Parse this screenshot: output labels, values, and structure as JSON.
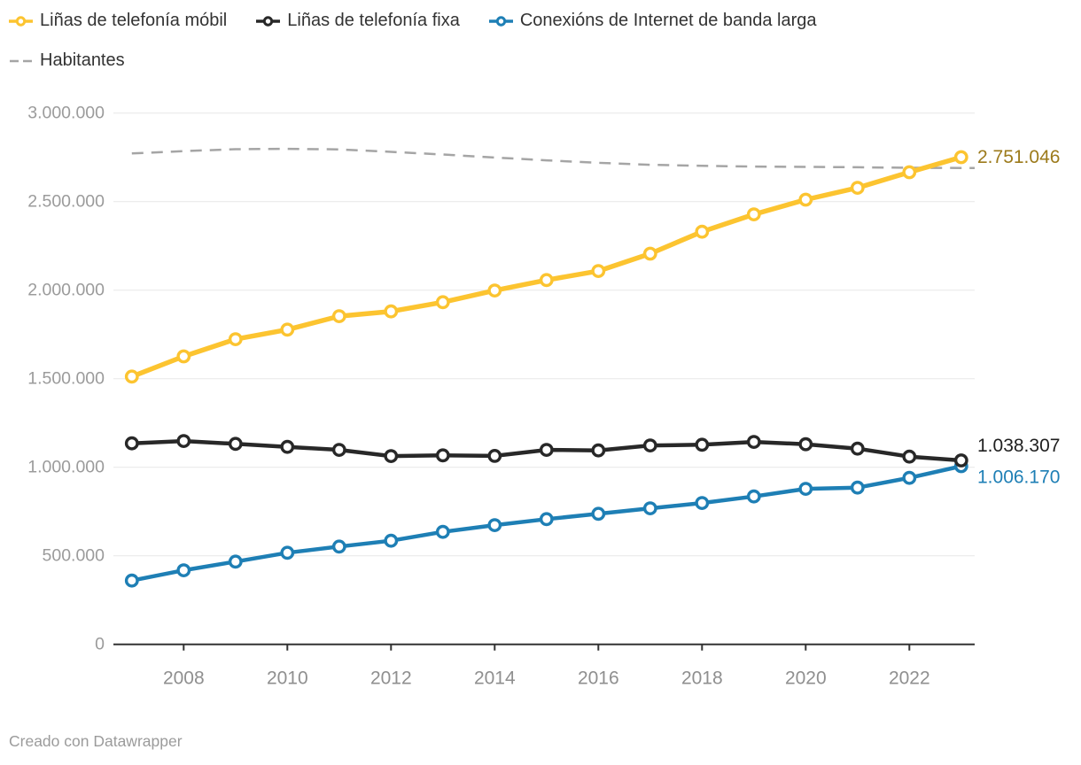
{
  "legend": {
    "items": [
      {
        "label": "Liñas de telefonía móbil",
        "color": "#FCC430",
        "type": "line-marker"
      },
      {
        "label": "Liñas de telefonía fixa",
        "color": "#282828",
        "type": "line-marker"
      },
      {
        "label": "Conexións de Internet de banda larga",
        "color": "#1E7FB5",
        "type": "line-marker"
      },
      {
        "label": "Habitantes",
        "color": "#A5A5A5",
        "type": "dashed"
      }
    ]
  },
  "footer": {
    "credit": "Creado con Datawrapper"
  },
  "chart_data": {
    "type": "line",
    "title": "",
    "xlabel": "",
    "ylabel": "",
    "grid": true,
    "legend_position": "top",
    "x": [
      2007,
      2008,
      2009,
      2010,
      2011,
      2012,
      2013,
      2014,
      2015,
      2016,
      2017,
      2018,
      2019,
      2020,
      2021,
      2022,
      2023
    ],
    "xticks": [
      2008,
      2010,
      2012,
      2014,
      2016,
      2018,
      2020,
      2022
    ],
    "xtick_labels": [
      "2008",
      "2010",
      "2012",
      "2014",
      "2016",
      "2018",
      "2020",
      "2022"
    ],
    "ylim": [
      0,
      3000000
    ],
    "yticks": [
      0,
      500000,
      1000000,
      1500000,
      2000000,
      2500000,
      3000000
    ],
    "ytick_labels": [
      "0",
      "500.000",
      "1.000.000",
      "1.500.000",
      "2.000.000",
      "2.500.000",
      "3.000.000"
    ],
    "series": [
      {
        "name": "Liñas de telefonía móbil",
        "color": "#FCC430",
        "style": "solid",
        "marker": "circle",
        "width": 5.5,
        "values": [
          1512000,
          1626000,
          1723000,
          1777000,
          1853000,
          1880000,
          1932000,
          1998000,
          2057000,
          2108000,
          2206000,
          2330000,
          2428000,
          2511000,
          2578000,
          2666000,
          2751046
        ],
        "end_label": {
          "text": "2.751.046",
          "color": "#9C7A1B",
          "dy": 0
        }
      },
      {
        "name": "Liñas de telefonía fixa",
        "color": "#282828",
        "style": "solid",
        "marker": "circle",
        "width": 4.5,
        "values": [
          1135000,
          1148000,
          1132000,
          1115000,
          1098000,
          1063000,
          1067000,
          1064000,
          1098000,
          1095000,
          1123000,
          1127000,
          1143000,
          1130000,
          1105000,
          1060000,
          1038307
        ],
        "end_label": {
          "text": "1.038.307",
          "color": "#1F1F1F",
          "dy": -16.5
        }
      },
      {
        "name": "Conexións de Internet de banda larga",
        "color": "#1E7FB5",
        "style": "solid",
        "marker": "circle",
        "width": 4.5,
        "values": [
          360000,
          418000,
          467000,
          517000,
          552000,
          585000,
          635000,
          673000,
          707000,
          737000,
          768000,
          798000,
          835000,
          878000,
          885000,
          940000,
          1006170
        ],
        "end_label": {
          "text": "1.006.170",
          "color": "#1E7FB5",
          "dy": 12.5
        }
      },
      {
        "name": "Habitantes",
        "color": "#A5A5A5",
        "style": "dashed",
        "marker": "none",
        "width": 2.5,
        "values": [
          2772000,
          2785000,
          2796000,
          2798000,
          2795000,
          2781000,
          2766000,
          2749000,
          2733000,
          2719000,
          2708000,
          2702000,
          2698000,
          2696000,
          2694000,
          2691000,
          2690000
        ]
      }
    ]
  }
}
